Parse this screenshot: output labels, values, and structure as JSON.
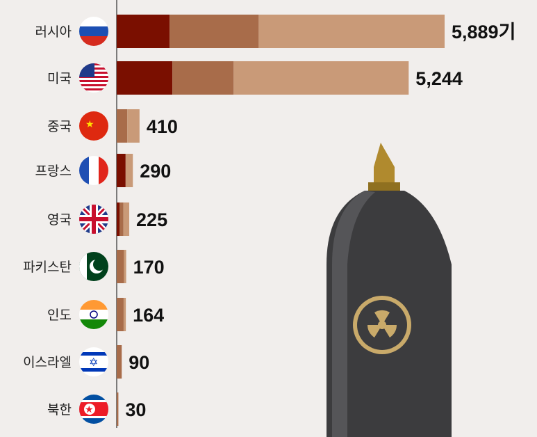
{
  "chart_data": {
    "type": "bar",
    "orientation": "horizontal",
    "stacked": true,
    "unit": "기",
    "categories": [
      "러시아",
      "미국",
      "중국",
      "프랑스",
      "영국",
      "파키스탄",
      "인도",
      "이스라엘",
      "북한"
    ],
    "totals": [
      5889,
      5244,
      410,
      290,
      225,
      170,
      164,
      90,
      30
    ],
    "value_labels": [
      "5,889기",
      "5,244",
      "410",
      "290",
      "225",
      "170",
      "164",
      "90",
      "30"
    ],
    "series": [
      {
        "values": [
          950,
          1000,
          0,
          160,
          50,
          0,
          0,
          0,
          0
        ],
        "color": "#7a0f00"
      },
      {
        "values": [
          1600,
          1100,
          190,
          0,
          70,
          130,
          124,
          90,
          30
        ],
        "color": "#a86c4a"
      },
      {
        "values": [
          3339,
          3144,
          220,
          130,
          105,
          40,
          40,
          0,
          0
        ],
        "color": "#c99a78"
      }
    ],
    "xlim": [
      0,
      5889
    ],
    "grid": false,
    "flags": [
      "russia",
      "usa",
      "china",
      "france",
      "uk",
      "pakistan",
      "india",
      "israel",
      "north-korea"
    ],
    "decoration": "nuclear-warhead-icon"
  }
}
